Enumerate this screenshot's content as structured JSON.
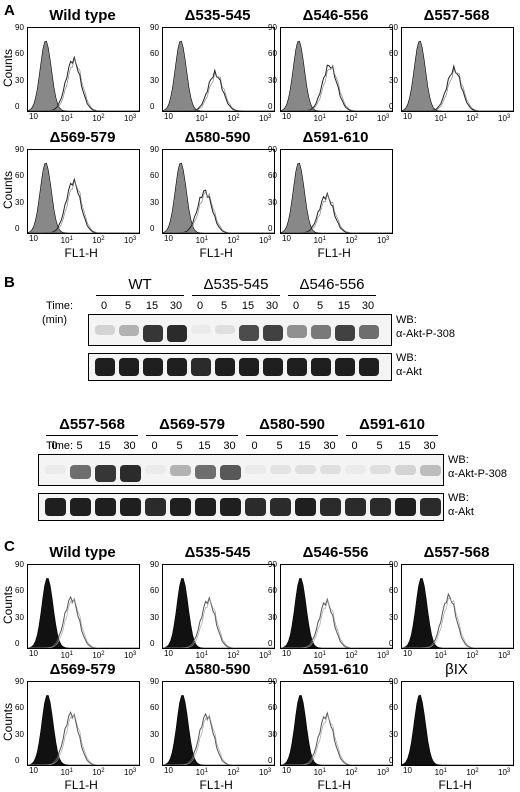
{
  "panels": {
    "a": "A",
    "b": "B",
    "c": "C"
  },
  "axis": {
    "xlabel": "FL1-H",
    "ylabel": "Counts",
    "x_ticks": [
      "10",
      "10",
      "10",
      "10"
    ],
    "x_tick_exps": [
      "1",
      "2",
      "3"
    ],
    "y_ticks_a": [
      "90",
      "60",
      "30",
      "0"
    ],
    "y_ticks_c": [
      "90",
      "60",
      "30",
      "0"
    ]
  },
  "panel_a": {
    "titles": [
      "Wild type",
      "Δ535-545",
      "Δ546-556",
      "Δ557-568",
      "Δ569-579",
      "Δ580-590",
      "Δ591-610"
    ],
    "histograms": [
      {
        "control_peak_log": 0.4,
        "stain_peak_log": 1.2,
        "stain_peak_height": 0.62
      },
      {
        "control_peak_log": 0.4,
        "stain_peak_log": 1.4,
        "stain_peak_height": 0.45
      },
      {
        "control_peak_log": 0.4,
        "stain_peak_log": 1.3,
        "stain_peak_height": 0.55
      },
      {
        "control_peak_log": 0.4,
        "stain_peak_log": 1.4,
        "stain_peak_height": 0.5
      },
      {
        "control_peak_log": 0.4,
        "stain_peak_log": 1.2,
        "stain_peak_height": 0.62
      },
      {
        "control_peak_log": 0.4,
        "stain_peak_log": 1.1,
        "stain_peak_height": 0.5
      },
      {
        "control_peak_log": 0.4,
        "stain_peak_log": 1.2,
        "stain_peak_height": 0.45
      }
    ]
  },
  "panel_b": {
    "time_label": "Time:",
    "time_unit": "(min)",
    "lanes": [
      "0",
      "5",
      "15",
      "30"
    ],
    "top_groups": [
      "WT",
      "Δ535-545",
      "Δ546-556"
    ],
    "bottom_groups": [
      "Δ557-568",
      "Δ569-579",
      "Δ580-590",
      "Δ591-610"
    ],
    "wb_label": "WB:",
    "antibody_phospho": "α-Akt-P-308",
    "antibody_total": "α-Akt",
    "top_phospho_intensity": [
      0.15,
      0.3,
      0.85,
      0.9,
      0.05,
      0.1,
      0.75,
      0.8,
      0.45,
      0.55,
      0.8,
      0.6
    ],
    "top_total_intensity": [
      0.95,
      0.95,
      0.95,
      0.95,
      0.9,
      0.95,
      0.95,
      0.95,
      0.95,
      0.95,
      0.95,
      0.95
    ],
    "bottom_phospho_intensity": [
      0.05,
      0.6,
      0.85,
      0.9,
      0.05,
      0.3,
      0.6,
      0.7,
      0.05,
      0.08,
      0.1,
      0.1,
      0.05,
      0.1,
      0.15,
      0.25
    ],
    "bottom_total_intensity": [
      0.95,
      0.95,
      0.95,
      0.95,
      0.9,
      0.95,
      0.95,
      0.95,
      0.9,
      0.9,
      0.95,
      0.9,
      0.9,
      0.9,
      0.95,
      0.9
    ]
  },
  "panel_c": {
    "titles": [
      "Wild type",
      "Δ535-545",
      "Δ546-556",
      "Δ557-568",
      "Δ569-579",
      "Δ580-590",
      "Δ591-610",
      "βIX"
    ]
  }
}
